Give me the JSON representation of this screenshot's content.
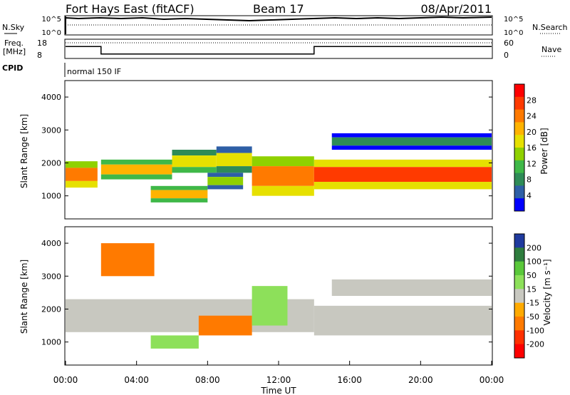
{
  "header": {
    "station": "Fort Hays East (fitACF)",
    "beam": "Beam 17",
    "date": "08/Apr/2011"
  },
  "status_panels": {
    "nsky_label": "N.Sky",
    "nsearch_label": "N.Search",
    "noise_ticks_left": [
      "10^5",
      "10^0"
    ],
    "noise_ticks_right": [
      "10^5",
      "10^0"
    ],
    "freq_label_line1": "Freq.",
    "freq_label_line2": "[MHz]",
    "freq_ticks": [
      "18",
      "8"
    ],
    "nave_label": "Nave",
    "nave_ticks": [
      "60",
      "0"
    ],
    "cpid_label": "CPID",
    "cpid_value": "normal 150 IF"
  },
  "legends": {
    "power": {
      "title": "Power [dB]",
      "ticks": [
        "28",
        "24",
        "20",
        "16",
        "12",
        "8",
        "4"
      ],
      "colors": [
        "#ff0000",
        "#ff3a00",
        "#ff7a00",
        "#ffb300",
        "#e6e000",
        "#8fd100",
        "#3fb848",
        "#2e8b57",
        "#2e5fa6",
        "#0000ff"
      ]
    },
    "velocity": {
      "title": "Velocity [m s⁻¹]",
      "ticks": [
        "200",
        "100",
        "50",
        "15",
        "-15",
        "-50",
        "-100",
        "-200"
      ],
      "colors": [
        "#1f3a9e",
        "#2e7d3e",
        "#5ac83a",
        "#8de05a",
        "#c8c8c0",
        "#ffaa00",
        "#ff7a00",
        "#ff3000",
        "#ff0000"
      ]
    }
  },
  "chart_data": {
    "type": "heatmap",
    "xlabel": "Time UT",
    "ylabel": "Slant Range [km]",
    "x_ticks": [
      "00:00",
      "04:00",
      "08:00",
      "12:00",
      "16:00",
      "20:00",
      "00:00"
    ],
    "x_range_hours": [
      0,
      24
    ],
    "y_range_km": [
      300,
      4500
    ],
    "y_ticks": [
      "1000",
      "2000",
      "3000",
      "4000"
    ],
    "frequency_mhz": [
      {
        "start_h": 0,
        "end_h": 2,
        "value": 15.5
      },
      {
        "start_h": 2,
        "end_h": 14,
        "value": 10.5
      },
      {
        "start_h": 14,
        "end_h": 24,
        "value": 15.5
      }
    ],
    "power_bands": [
      {
        "start_h": 0.0,
        "end_h": 1.8,
        "lo_km": 1250,
        "hi_km": 2050,
        "peak_db": 26
      },
      {
        "start_h": 2.0,
        "end_h": 6.0,
        "lo_km": 1500,
        "hi_km": 2100,
        "peak_db": 22
      },
      {
        "start_h": 6.0,
        "end_h": 8.5,
        "lo_km": 1700,
        "hi_km": 2400,
        "peak_db": 20
      },
      {
        "start_h": 8.5,
        "end_h": 10.5,
        "lo_km": 1700,
        "hi_km": 2500,
        "peak_db": 18
      },
      {
        "start_h": 10.5,
        "end_h": 14.0,
        "lo_km": 1000,
        "hi_km": 2200,
        "peak_db": 26
      },
      {
        "start_h": 14.0,
        "end_h": 24.0,
        "lo_km": 1200,
        "hi_km": 2100,
        "peak_db": 28
      },
      {
        "start_h": 4.8,
        "end_h": 8.0,
        "lo_km": 800,
        "hi_km": 1300,
        "peak_db": 22
      },
      {
        "start_h": 8.0,
        "end_h": 10.0,
        "lo_km": 1200,
        "hi_km": 1700,
        "peak_db": 16
      },
      {
        "start_h": 15.0,
        "end_h": 24.0,
        "lo_km": 2400,
        "hi_km": 2900,
        "peak_db": 10
      }
    ],
    "velocity_bands": [
      {
        "start_h": 0.0,
        "end_h": 14.0,
        "lo_km": 1300,
        "hi_km": 2300,
        "velocity": 0
      },
      {
        "start_h": 14.0,
        "end_h": 24.0,
        "lo_km": 1200,
        "hi_km": 2100,
        "velocity": 0
      },
      {
        "start_h": 15.0,
        "end_h": 24.0,
        "lo_km": 2400,
        "hi_km": 2900,
        "velocity": 0
      },
      {
        "start_h": 4.8,
        "end_h": 7.5,
        "lo_km": 800,
        "hi_km": 1200,
        "velocity": 30
      },
      {
        "start_h": 7.5,
        "end_h": 10.5,
        "lo_km": 1200,
        "hi_km": 1800,
        "velocity": -40
      },
      {
        "start_h": 10.5,
        "end_h": 12.5,
        "lo_km": 1500,
        "hi_km": 2700,
        "velocity": 30
      },
      {
        "start_h": 2.0,
        "end_h": 5.0,
        "lo_km": 3000,
        "hi_km": 4000,
        "velocity": -40
      }
    ]
  }
}
